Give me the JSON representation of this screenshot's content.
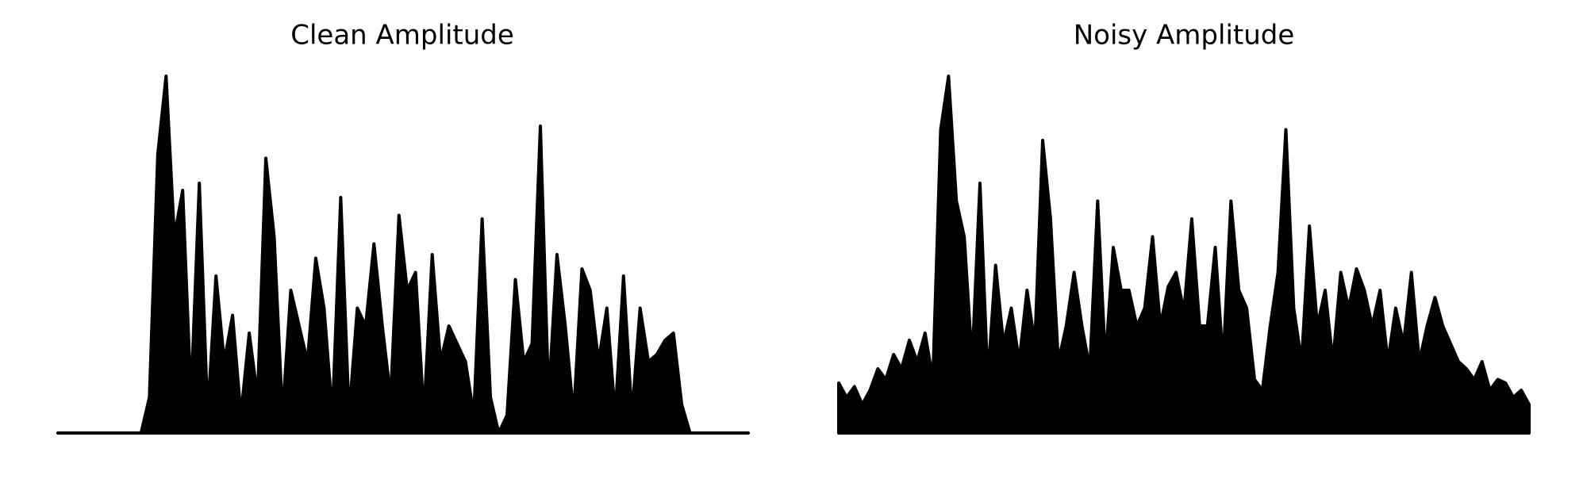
{
  "chart_data": [
    {
      "type": "area",
      "title": "Clean Amplitude",
      "color": "#000000",
      "ylim": [
        0,
        1
      ],
      "values": [
        0,
        0,
        0,
        0,
        0,
        0,
        0,
        0,
        0,
        0,
        0,
        0.1,
        0.78,
        1.0,
        0.55,
        0.68,
        0.1,
        0.7,
        0.05,
        0.44,
        0.2,
        0.33,
        0.05,
        0.28,
        0.1,
        0.77,
        0.55,
        0.05,
        0.4,
        0.3,
        0.2,
        0.49,
        0.35,
        0.05,
        0.66,
        0.05,
        0.35,
        0.3,
        0.53,
        0.3,
        0.1,
        0.61,
        0.4,
        0.45,
        0.05,
        0.5,
        0.2,
        0.3,
        0.25,
        0.2,
        0.05,
        0.6,
        0.1,
        0.0,
        0.05,
        0.43,
        0.2,
        0.25,
        0.86,
        0.1,
        0.5,
        0.3,
        0.05,
        0.46,
        0.4,
        0.2,
        0.35,
        0.05,
        0.44,
        0.05,
        0.35,
        0.2,
        0.22,
        0.26,
        0.28,
        0.08,
        0,
        0,
        0,
        0,
        0,
        0,
        0,
        0
      ]
    },
    {
      "type": "area",
      "title": "Noisy Amplitude",
      "color": "#000000",
      "ylim": [
        0,
        1
      ],
      "values": [
        0.14,
        0.1,
        0.13,
        0.08,
        0.12,
        0.18,
        0.15,
        0.22,
        0.18,
        0.26,
        0.2,
        0.28,
        0.15,
        0.85,
        1.0,
        0.65,
        0.55,
        0.2,
        0.7,
        0.15,
        0.47,
        0.25,
        0.35,
        0.2,
        0.4,
        0.25,
        0.82,
        0.6,
        0.2,
        0.3,
        0.45,
        0.3,
        0.18,
        0.65,
        0.2,
        0.52,
        0.4,
        0.4,
        0.3,
        0.35,
        0.55,
        0.3,
        0.41,
        0.45,
        0.34,
        0.6,
        0.3,
        0.3,
        0.52,
        0.2,
        0.65,
        0.4,
        0.35,
        0.15,
        0.12,
        0.3,
        0.45,
        0.85,
        0.35,
        0.2,
        0.58,
        0.3,
        0.4,
        0.2,
        0.45,
        0.35,
        0.46,
        0.4,
        0.3,
        0.4,
        0.2,
        0.35,
        0.25,
        0.45,
        0.2,
        0.3,
        0.38,
        0.3,
        0.25,
        0.2,
        0.18,
        0.15,
        0.2,
        0.12,
        0.15,
        0.14,
        0.1,
        0.12,
        0.08
      ]
    }
  ]
}
